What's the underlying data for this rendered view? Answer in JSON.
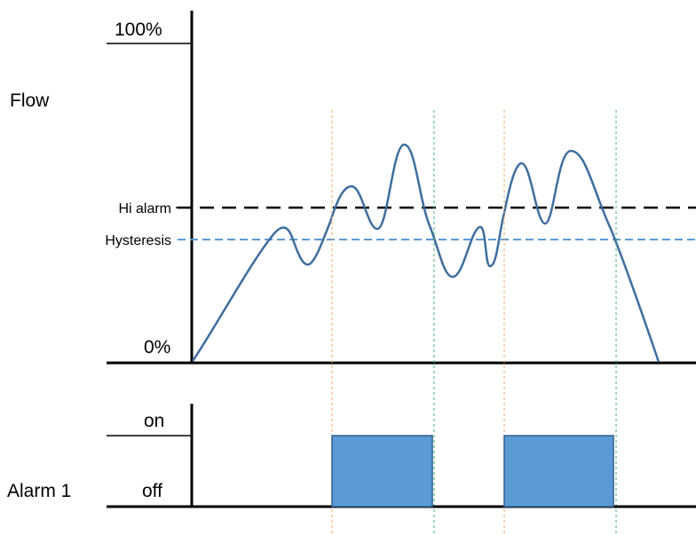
{
  "flow_panel": {
    "title": "Flow",
    "max_label": "100%",
    "min_label": "0%",
    "hi_alarm_label": "Hi alarm",
    "hysteresis_label": "Hysteresis"
  },
  "alarm_panel": {
    "title": "Alarm 1",
    "on_label": "on",
    "off_label": "off",
    "active_periods": 2
  },
  "colors": {
    "signal": "#3e6e9e",
    "hi_alarm_line": "#000000",
    "hysteresis_line": "#5b9bd5",
    "alarm_on_marker": "#f4a460",
    "alarm_off_marker": "#3cb371",
    "alarm_fill": "#5b9bd5",
    "alarm_stroke": "#2f5f8f"
  }
}
